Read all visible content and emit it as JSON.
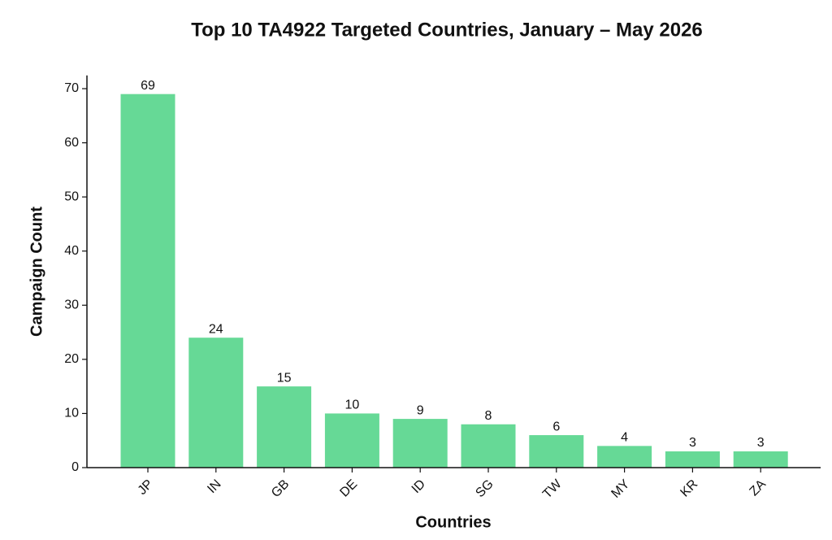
{
  "chart_data": {
    "type": "bar",
    "title": "Top 10 TA4922 Targeted Countries, January – May 2026",
    "x_label": "Countries",
    "y_label": "Campaign Count",
    "categories": [
      "JP",
      "IN",
      "GB",
      "DE",
      "ID",
      "SG",
      "TW",
      "MY",
      "KR",
      "ZA"
    ],
    "values": [
      69,
      24,
      15,
      10,
      9,
      8,
      6,
      4,
      3,
      3
    ],
    "color": "#66d996",
    "ylim": [
      0,
      72.45
    ],
    "yticks": [
      0,
      10,
      20,
      30,
      40,
      50,
      60,
      70
    ]
  }
}
